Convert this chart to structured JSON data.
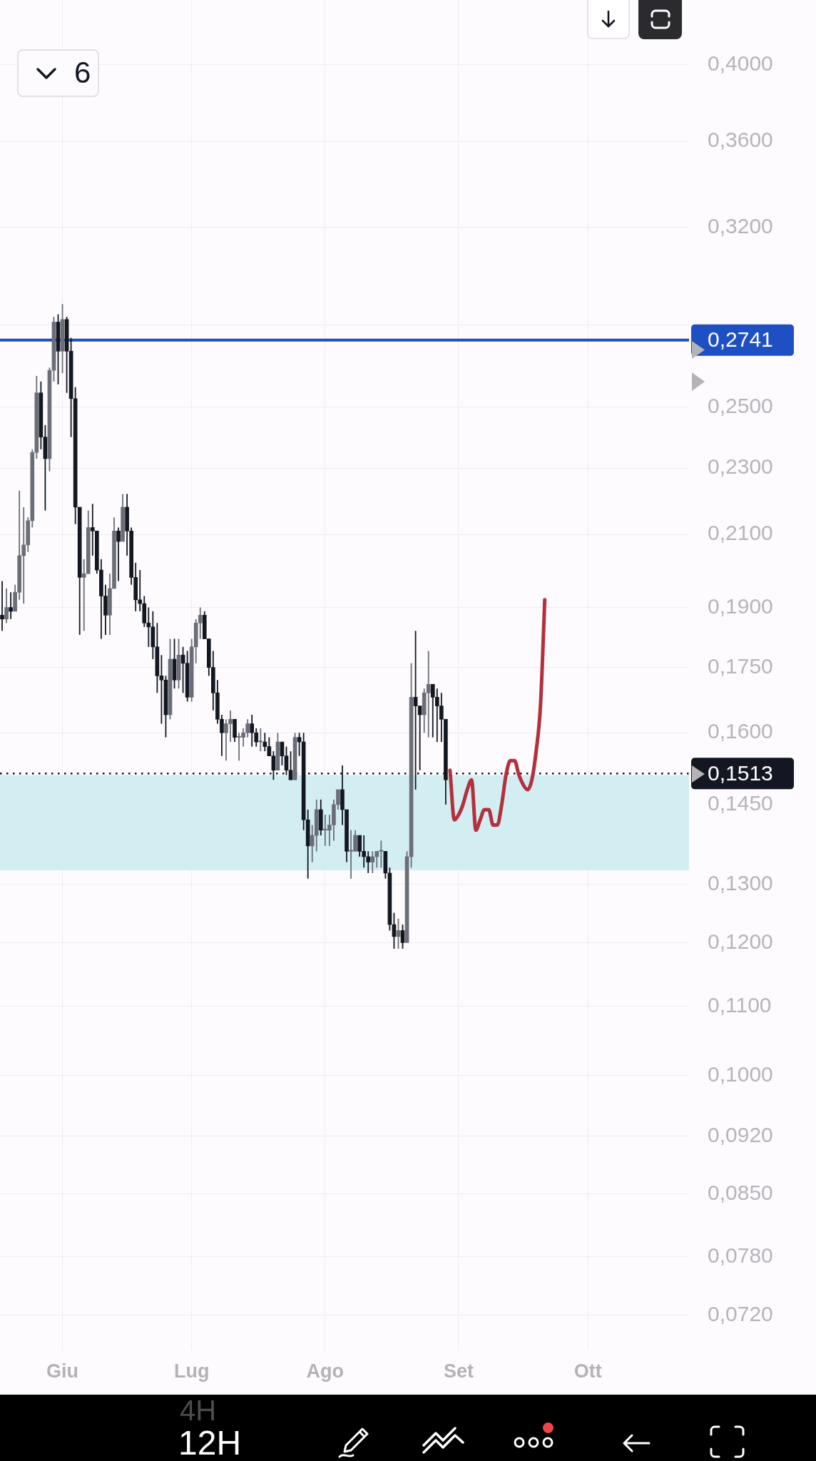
{
  "chart_data": {
    "type": "candlestick",
    "categories": [
      null,
      null,
      null,
      null,
      null,
      null,
      null,
      null,
      null,
      null,
      null,
      null,
      null,
      null,
      "Giu",
      null,
      null,
      null,
      null,
      null,
      null,
      null,
      null,
      null,
      null,
      null,
      null,
      null,
      null,
      null,
      null,
      null,
      null,
      null,
      null,
      null,
      null,
      null,
      null,
      null,
      null,
      null,
      null,
      null,
      "Lug",
      null,
      null,
      null,
      null,
      null,
      null,
      null,
      null,
      null,
      null,
      null,
      null,
      null,
      null,
      null,
      null,
      null,
      null,
      null,
      null,
      null,
      null,
      null,
      null,
      null,
      null,
      null,
      null,
      null,
      null,
      "Ago",
      null,
      null,
      null,
      null,
      null,
      null,
      null,
      null,
      null,
      null,
      null,
      null,
      null,
      null,
      null,
      null,
      null,
      null,
      null,
      null,
      null,
      null,
      null,
      null,
      null,
      null,
      null,
      null,
      null,
      null,
      "Set",
      null,
      null,
      null,
      null,
      null,
      null,
      null,
      null,
      null,
      null,
      null,
      null,
      null,
      null,
      null,
      null,
      null,
      null,
      null,
      null,
      null,
      null,
      null,
      null,
      null,
      null,
      null,
      null,
      null,
      "Ott",
      null,
      null,
      null,
      null,
      null,
      null,
      null,
      null,
      null,
      null,
      null,
      null,
      null,
      null,
      null,
      null,
      null,
      null,
      null,
      null,
      null,
      null,
      null
    ],
    "ohlc": [
      [
        0.188,
        0.197,
        0.184,
        0.187
      ],
      [
        0.187,
        0.195,
        0.186,
        0.19
      ],
      [
        0.19,
        0.194,
        0.187,
        0.189
      ],
      [
        0.189,
        0.196,
        0.189,
        0.194
      ],
      [
        0.194,
        0.223,
        0.192,
        0.204
      ],
      [
        0.204,
        0.218,
        0.191,
        0.207
      ],
      [
        0.207,
        0.215,
        0.205,
        0.214
      ],
      [
        0.214,
        0.236,
        0.212,
        0.235
      ],
      [
        0.235,
        0.261,
        0.233,
        0.255
      ],
      [
        0.255,
        0.259,
        0.236,
        0.24
      ],
      [
        0.24,
        0.244,
        0.217,
        0.233
      ],
      [
        0.233,
        0.264,
        0.229,
        0.263
      ],
      [
        0.263,
        0.283,
        0.259,
        0.281
      ],
      [
        0.281,
        0.284,
        0.258,
        0.27
      ],
      [
        0.27,
        0.288,
        0.262,
        0.282
      ],
      [
        0.282,
        0.283,
        0.255,
        0.27
      ],
      [
        0.27,
        0.275,
        0.24,
        0.253
      ],
      [
        0.253,
        0.257,
        0.213,
        0.218
      ],
      [
        0.218,
        0.218,
        0.183,
        0.198
      ],
      [
        0.198,
        0.203,
        0.184,
        0.199
      ],
      [
        0.199,
        0.217,
        0.199,
        0.212
      ],
      [
        0.212,
        0.219,
        0.204,
        0.211
      ],
      [
        0.211,
        0.211,
        0.199,
        0.2
      ],
      [
        0.2,
        0.203,
        0.182,
        0.193
      ],
      [
        0.193,
        0.196,
        0.183,
        0.188
      ],
      [
        0.188,
        0.199,
        0.183,
        0.195
      ],
      [
        0.195,
        0.215,
        0.195,
        0.211
      ],
      [
        0.211,
        0.212,
        0.197,
        0.208
      ],
      [
        0.208,
        0.222,
        0.208,
        0.218
      ],
      [
        0.218,
        0.222,
        0.204,
        0.211
      ],
      [
        0.211,
        0.212,
        0.196,
        0.198
      ],
      [
        0.198,
        0.202,
        0.189,
        0.192
      ],
      [
        0.192,
        0.2,
        0.189,
        0.191
      ],
      [
        0.191,
        0.193,
        0.185,
        0.186
      ],
      [
        0.186,
        0.19,
        0.18,
        0.185
      ],
      [
        0.185,
        0.189,
        0.177,
        0.18
      ],
      [
        0.18,
        0.186,
        0.169,
        0.173
      ],
      [
        0.173,
        0.178,
        0.162,
        0.172
      ],
      [
        0.172,
        0.173,
        0.159,
        0.164
      ],
      [
        0.164,
        0.182,
        0.163,
        0.177
      ],
      [
        0.177,
        0.182,
        0.17,
        0.172
      ],
      [
        0.172,
        0.182,
        0.17,
        0.178
      ],
      [
        0.178,
        0.18,
        0.169,
        0.176
      ],
      [
        0.176,
        0.179,
        0.167,
        0.168
      ],
      [
        0.168,
        0.182,
        0.167,
        0.18
      ],
      [
        0.18,
        0.187,
        0.176,
        0.186
      ],
      [
        0.186,
        0.19,
        0.182,
        0.188
      ],
      [
        0.188,
        0.189,
        0.182,
        0.182
      ],
      [
        0.182,
        0.182,
        0.173,
        0.175
      ],
      [
        0.175,
        0.179,
        0.165,
        0.169
      ],
      [
        0.169,
        0.172,
        0.162,
        0.163
      ],
      [
        0.163,
        0.164,
        0.155,
        0.16
      ],
      [
        0.16,
        0.163,
        0.154,
        0.162
      ],
      [
        0.162,
        0.165,
        0.158,
        0.163
      ],
      [
        0.163,
        0.163,
        0.158,
        0.159
      ],
      [
        0.159,
        0.16,
        0.154,
        0.159
      ],
      [
        0.159,
        0.161,
        0.157,
        0.16
      ],
      [
        0.16,
        0.163,
        0.159,
        0.162
      ],
      [
        0.162,
        0.164,
        0.157,
        0.16
      ],
      [
        0.16,
        0.161,
        0.157,
        0.158
      ],
      [
        0.158,
        0.161,
        0.156,
        0.158
      ],
      [
        0.158,
        0.16,
        0.156,
        0.157
      ],
      [
        0.157,
        0.159,
        0.155,
        0.155
      ],
      [
        0.155,
        0.156,
        0.15,
        0.152
      ],
      [
        0.152,
        0.16,
        0.152,
        0.158
      ],
      [
        0.158,
        0.158,
        0.153,
        0.155
      ],
      [
        0.155,
        0.157,
        0.151,
        0.152
      ],
      [
        0.152,
        0.156,
        0.15,
        0.15
      ],
      [
        0.15,
        0.16,
        0.15,
        0.159
      ],
      [
        0.159,
        0.16,
        0.155,
        0.158
      ],
      [
        0.158,
        0.16,
        0.14,
        0.142
      ],
      [
        0.142,
        0.144,
        0.131,
        0.137
      ],
      [
        0.137,
        0.141,
        0.134,
        0.139
      ],
      [
        0.139,
        0.146,
        0.136,
        0.144
      ],
      [
        0.144,
        0.146,
        0.139,
        0.14
      ],
      [
        0.14,
        0.143,
        0.137,
        0.14
      ],
      [
        0.14,
        0.143,
        0.137,
        0.141
      ],
      [
        0.141,
        0.146,
        0.138,
        0.145
      ],
      [
        0.145,
        0.148,
        0.144,
        0.148
      ],
      [
        0.148,
        0.153,
        0.141,
        0.144
      ],
      [
        0.144,
        0.144,
        0.134,
        0.136
      ],
      [
        0.136,
        0.14,
        0.131,
        0.136
      ],
      [
        0.136,
        0.14,
        0.136,
        0.139
      ],
      [
        0.139,
        0.139,
        0.135,
        0.136
      ],
      [
        0.136,
        0.139,
        0.133,
        0.135
      ],
      [
        0.135,
        0.136,
        0.132,
        0.134
      ],
      [
        0.134,
        0.136,
        0.132,
        0.135
      ],
      [
        0.135,
        0.136,
        0.133,
        0.136
      ],
      [
        0.136,
        0.138,
        0.133,
        0.136
      ],
      [
        0.136,
        0.136,
        0.131,
        0.132
      ],
      [
        0.132,
        0.133,
        0.122,
        0.123
      ],
      [
        0.123,
        0.125,
        0.119,
        0.121
      ],
      [
        0.121,
        0.124,
        0.119,
        0.122
      ],
      [
        0.122,
        0.123,
        0.119,
        0.12
      ],
      [
        0.12,
        0.136,
        0.12,
        0.135
      ],
      [
        0.135,
        0.176,
        0.133,
        0.168
      ],
      [
        0.168,
        0.184,
        0.148,
        0.166
      ],
      [
        0.166,
        0.166,
        0.152,
        0.164
      ],
      [
        0.164,
        0.17,
        0.16,
        0.169
      ],
      [
        0.169,
        0.179,
        0.159,
        0.171
      ],
      [
        0.171,
        0.171,
        0.159,
        0.168
      ],
      [
        0.168,
        0.17,
        0.158,
        0.166
      ],
      [
        0.166,
        0.169,
        0.158,
        0.163
      ],
      [
        0.163,
        0.163,
        0.145,
        0.15
      ],
      null,
      null,
      null,
      null,
      null,
      null,
      null,
      null,
      null,
      null,
      null,
      null,
      null,
      null,
      null,
      null,
      null,
      null,
      null,
      null,
      null,
      null,
      null,
      null,
      null,
      null,
      null,
      null,
      null,
      null,
      null,
      null,
      null,
      null,
      null,
      null,
      null,
      null,
      null,
      null,
      null,
      null,
      null,
      null,
      null,
      null,
      null,
      null,
      null,
      null,
      null,
      null,
      null,
      null,
      null,
      null
    ],
    "colors": [
      "#131722",
      "#6b6e78",
      "#131722",
      "#6b6e78",
      "#6b6e78",
      "#6b6e78",
      "#6b6e78",
      "#6b6e78",
      "#6b6e78",
      "#131722",
      "#131722",
      "#6b6e78",
      "#6b6e78",
      "#131722",
      "#6b6e78",
      "#131722",
      "#131722",
      "#131722",
      "#131722",
      "#6b6e78",
      "#6b6e78",
      "#131722",
      "#131722",
      "#131722",
      "#131722",
      "#6b6e78",
      "#6b6e78",
      "#131722",
      "#6b6e78",
      "#131722",
      "#131722",
      "#131722",
      "#131722",
      "#131722",
      "#131722",
      "#131722",
      "#131722",
      "#131722",
      "#131722",
      "#6b6e78",
      "#131722",
      "#6b6e78",
      "#131722",
      "#131722",
      "#6b6e78",
      "#6b6e78",
      "#6b6e78",
      "#131722",
      "#131722",
      "#131722",
      "#131722",
      "#131722",
      "#6b6e78",
      "#6b6e78",
      "#131722",
      "#6b6e78",
      "#6b6e78",
      "#6b6e78",
      "#131722",
      "#131722",
      "#6b6e78",
      "#131722",
      "#131722",
      "#131722",
      "#6b6e78",
      "#131722",
      "#131722",
      "#131722",
      "#6b6e78",
      "#131722",
      "#131722",
      "#131722",
      "#6b6e78",
      "#6b6e78",
      "#131722",
      "#6b6e78",
      "#6b6e78",
      "#6b6e78",
      "#6b6e78",
      "#131722",
      "#131722",
      "#6b6e78",
      "#6b6e78",
      "#131722",
      "#131722",
      "#131722",
      "#6b6e78",
      "#6b6e78",
      "#6b6e78",
      "#131722",
      "#131722",
      "#131722",
      "#6b6e78",
      "#131722",
      "#6b6e78",
      "#6b6e78",
      "#131722",
      "#131722",
      "#6b6e78",
      "#6b6e78",
      "#131722",
      "#131722",
      "#131722",
      "#131722",
      null,
      null,
      null,
      null,
      null,
      null,
      null,
      null,
      null,
      null,
      null,
      null,
      null,
      null,
      null,
      null,
      null,
      null,
      null,
      null,
      null,
      null,
      null,
      null,
      null,
      null,
      null,
      null,
      null,
      null,
      null,
      null,
      null,
      null,
      null,
      null,
      null,
      null,
      null,
      null,
      null,
      null,
      null,
      null,
      null,
      null,
      null,
      null,
      null,
      null,
      null,
      null,
      null,
      null,
      null,
      null
    ],
    "series": [
      {
        "type": "line",
        "color": "#b3303d",
        "values": [
          null,
          null,
          null,
          null,
          null,
          null,
          null,
          null,
          null,
          null,
          null,
          null,
          null,
          null,
          null,
          null,
          null,
          null,
          null,
          null,
          null,
          null,
          null,
          null,
          null,
          null,
          null,
          null,
          null,
          null,
          null,
          null,
          null,
          null,
          null,
          null,
          null,
          null,
          null,
          null,
          null,
          null,
          null,
          null,
          null,
          null,
          null,
          null,
          null,
          null,
          null,
          null,
          null,
          null,
          null,
          null,
          null,
          null,
          null,
          null,
          null,
          null,
          null,
          null,
          null,
          null,
          null,
          null,
          null,
          null,
          null,
          null,
          null,
          null,
          null,
          null,
          null,
          null,
          null,
          null,
          null,
          null,
          null,
          null,
          null,
          null,
          null,
          null,
          null,
          null,
          null,
          null,
          null,
          null,
          null,
          null,
          null,
          null,
          null,
          null,
          null,
          null,
          null,
          null,
          0.152,
          0.142,
          0.143,
          0.145,
          0.148,
          0.15,
          0.14,
          0.142,
          0.144,
          0.144,
          0.141,
          0.141,
          0.145,
          0.151,
          0.154,
          0.154,
          0.151,
          0.149,
          0.148,
          0.15,
          0.156,
          0.166,
          0.192,
          null,
          null,
          null,
          null,
          null,
          null,
          null,
          null,
          null,
          null,
          null,
          null,
          null,
          null,
          null,
          null,
          null,
          null,
          null,
          null,
          null,
          null,
          null,
          null,
          null,
          null,
          null,
          null,
          null,
          null,
          null,
          null,
          null
        ]
      }
    ],
    "log": true,
    "grid": true,
    "ylim": [
      0.0686,
      0.437
    ],
    "yticks": [
      {
        "value": 0.072,
        "label": "0,0720"
      },
      {
        "value": 0.078,
        "label": "0,0780"
      },
      {
        "value": 0.085,
        "label": "0,0850"
      },
      {
        "value": 0.092,
        "label": "0,0920"
      },
      {
        "value": 0.1,
        "label": "0,1000"
      },
      {
        "value": 0.11,
        "label": "0,1100"
      },
      {
        "value": 0.12,
        "label": "0,1200"
      },
      {
        "value": 0.13,
        "label": "0,1300"
      },
      {
        "value": 0.145,
        "label": "0,1450"
      },
      {
        "value": 0.16,
        "label": "0,1600"
      },
      {
        "value": 0.175,
        "label": "0,1750"
      },
      {
        "value": 0.19,
        "label": "0,1900"
      },
      {
        "value": 0.21,
        "label": "0,2100"
      },
      {
        "value": 0.23,
        "label": "0,2300"
      },
      {
        "value": 0.25,
        "label": "0,2500"
      },
      {
        "value": 0.28,
        "label": null
      },
      {
        "value": 0.32,
        "label": "0,3200"
      },
      {
        "value": 0.36,
        "label": "0,3600"
      },
      {
        "value": 0.4,
        "label": "0,4000"
      }
    ],
    "ref_lines": [
      {
        "axis": "y",
        "value": 0.2741,
        "label": "0,2741",
        "color": "#1e4fc3"
      },
      {
        "axis": "y",
        "value": 0.1513,
        "label": "0,1513",
        "color": "#131722",
        "line_style": "dotted"
      }
    ],
    "bands": [
      {
        "axis": "y",
        "from": 0.1325,
        "to": 0.151,
        "color": "#d3eef3"
      }
    ],
    "annotations": [
      "6",
      "12H",
      "4H"
    ]
  }
}
